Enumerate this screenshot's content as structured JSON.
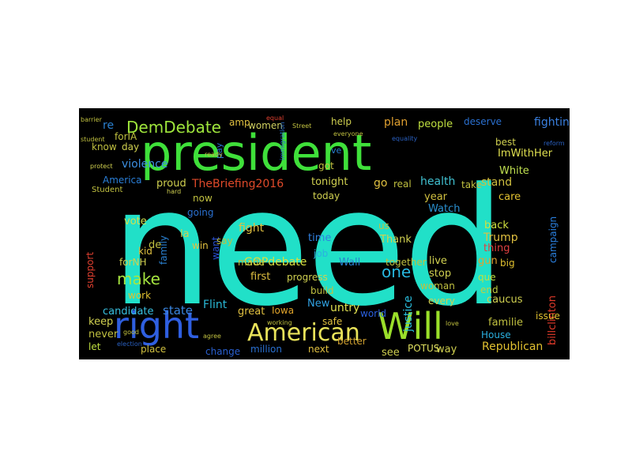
{
  "wordcloud": {
    "background": "#000000",
    "words": [
      {
        "text": "need",
        "color": "#21e0c8"
      },
      {
        "text": "president",
        "color": "#3fe03a"
      },
      {
        "text": "right",
        "color": "#2f5fe0"
      },
      {
        "text": "Will",
        "color": "#9adf2a"
      },
      {
        "text": "American",
        "color": "#e8e25a"
      },
      {
        "text": "DemDebate",
        "color": "#9fe63c"
      },
      {
        "text": "make",
        "color": "#a6e540"
      },
      {
        "text": "one",
        "color": "#27b8e0"
      },
      {
        "text": "TheBriefing2016",
        "color": "#e04a2a"
      },
      {
        "text": "violence",
        "color": "#3d8fe0"
      },
      {
        "text": "America",
        "color": "#2a7fd8"
      },
      {
        "text": "GOPdebate",
        "color": "#d8e040"
      },
      {
        "text": "Iowa",
        "color": "#e0a32a"
      },
      {
        "text": "Flint",
        "color": "#2ab8d6"
      },
      {
        "text": "state",
        "color": "#3a86e0"
      },
      {
        "text": "candidate",
        "color": "#38c0e0"
      },
      {
        "text": "Republican",
        "color": "#e0c030"
      },
      {
        "text": "women",
        "color": "#d0d060"
      },
      {
        "text": "people",
        "color": "#c0e040"
      },
      {
        "text": "fighting",
        "color": "#3a80e0"
      },
      {
        "text": "deserve",
        "color": "#2a70d0"
      },
      {
        "text": "ImWithHer",
        "color": "#e0e050"
      },
      {
        "text": "plan",
        "color": "#e0a030"
      },
      {
        "text": "help",
        "color": "#d0d050"
      },
      {
        "text": "White",
        "color": "#c0e050"
      },
      {
        "text": "stand",
        "color": "#d0c040"
      },
      {
        "text": "health",
        "color": "#40c0d0"
      },
      {
        "text": "care",
        "color": "#e0c030"
      },
      {
        "text": "campaign",
        "color": "#2a80e0"
      },
      {
        "text": "justice",
        "color": "#2ac0e0"
      },
      {
        "text": "Trump",
        "color": "#e0c040"
      },
      {
        "text": "back",
        "color": "#d0e040"
      },
      {
        "text": "gun",
        "color": "#e0a030"
      },
      {
        "text": "thing",
        "color": "#e04040"
      },
      {
        "text": "big",
        "color": "#e0c030"
      },
      {
        "text": "que",
        "color": "#c0e040"
      },
      {
        "text": "billclinton",
        "color": "#e03a2a"
      },
      {
        "text": "caucus",
        "color": "#d0d050"
      },
      {
        "text": "issue",
        "color": "#e0c030"
      },
      {
        "text": "familie",
        "color": "#c0c040"
      },
      {
        "text": "House",
        "color": "#2ab0e0"
      },
      {
        "text": "end",
        "color": "#c0d040"
      },
      {
        "text": "POTUS",
        "color": "#e0e060"
      },
      {
        "text": "way",
        "color": "#d0d050"
      },
      {
        "text": "better",
        "color": "#d0a030"
      },
      {
        "text": "see",
        "color": "#d0d050"
      },
      {
        "text": "next",
        "color": "#e0c040"
      },
      {
        "text": "world",
        "color": "#2a60e0"
      },
      {
        "text": "safe",
        "color": "#e0c040"
      },
      {
        "text": "untry",
        "color": "#e0e050"
      },
      {
        "text": "New",
        "color": "#30a0e0"
      },
      {
        "text": "great",
        "color": "#e0c040"
      },
      {
        "text": "million",
        "color": "#2a70d0"
      },
      {
        "text": "change",
        "color": "#2a60d0"
      },
      {
        "text": "place",
        "color": "#d0c040"
      },
      {
        "text": "let",
        "color": "#c0e040"
      },
      {
        "text": "never",
        "color": "#c0c040"
      },
      {
        "text": "keep",
        "color": "#d0d050"
      },
      {
        "text": "work",
        "color": "#e0c030"
      },
      {
        "text": "kid",
        "color": "#e0c040"
      },
      {
        "text": "vote",
        "color": "#d0e050"
      },
      {
        "text": "support",
        "color": "#e04030"
      },
      {
        "text": "family",
        "color": "#2a80d0"
      },
      {
        "text": "forNH",
        "color": "#d0d050"
      },
      {
        "text": "de",
        "color": "#c0c040"
      },
      {
        "text": "la",
        "color": "#d0d050"
      },
      {
        "text": "win",
        "color": "#e0c040"
      },
      {
        "text": "want",
        "color": "#2a50d0"
      },
      {
        "text": "made",
        "color": "#c0c040"
      },
      {
        "text": "first",
        "color": "#e0c040"
      },
      {
        "text": "progress",
        "color": "#d0d050"
      },
      {
        "text": "build",
        "color": "#c0c040"
      },
      {
        "text": "fight",
        "color": "#e0c040"
      },
      {
        "text": "Wall",
        "color": "#2a80d0"
      },
      {
        "text": "job",
        "color": "#2ab0e0"
      },
      {
        "text": "time",
        "color": "#3080e0"
      },
      {
        "text": "us",
        "color": "#c0c040"
      },
      {
        "text": "Thank",
        "color": "#d0d050"
      },
      {
        "text": "today",
        "color": "#d0d050"
      },
      {
        "text": "now",
        "color": "#c0c040"
      },
      {
        "text": "going",
        "color": "#2a70d0"
      },
      {
        "text": "say",
        "color": "#c0c040"
      },
      {
        "text": "proud",
        "color": "#d0d050"
      },
      {
        "text": "go",
        "color": "#e0c040"
      },
      {
        "text": "real",
        "color": "#c0c040"
      },
      {
        "text": "tonight",
        "color": "#d0d050"
      },
      {
        "text": "got",
        "color": "#c0c040"
      },
      {
        "text": "amp",
        "color": "#e0c040"
      },
      {
        "text": "re",
        "color": "#2a80d0"
      },
      {
        "text": "know",
        "color": "#c0c040"
      },
      {
        "text": "day",
        "color": "#d0d050"
      },
      {
        "text": "forIA",
        "color": "#c0c040"
      },
      {
        "text": "best",
        "color": "#d0d050"
      },
      {
        "text": "year",
        "color": "#d0c040"
      },
      {
        "text": "take",
        "color": "#c0c040"
      },
      {
        "text": "Watch",
        "color": "#2a90d0"
      },
      {
        "text": "stop",
        "color": "#d0d050"
      },
      {
        "text": "woman",
        "color": "#c0c040"
      },
      {
        "text": "live",
        "color": "#d0d050"
      },
      {
        "text": "together",
        "color": "#c0c040"
      },
      {
        "text": "every",
        "color": "#d0d050"
      },
      {
        "text": "ve",
        "color": "#2a80d0"
      },
      {
        "text": "pay",
        "color": "#2a70d0"
      },
      {
        "text": "Student",
        "color": "#c0c040"
      },
      {
        "text": "barrier",
        "color": "#c0c040"
      },
      {
        "text": "protect",
        "color": "#d0d050"
      },
      {
        "text": "immigration",
        "color": "#2a70d0"
      },
      {
        "text": "equality",
        "color": "#2a60c0"
      },
      {
        "text": "agree",
        "color": "#c0c040"
      },
      {
        "text": "hard",
        "color": "#d0d050"
      },
      {
        "text": "election",
        "color": "#2a60c0"
      },
      {
        "text": "everyone",
        "color": "#c0c040"
      },
      {
        "text": "Street",
        "color": "#c0c040"
      },
      {
        "text": "equal",
        "color": "#e04030"
      },
      {
        "text": "ready",
        "color": "#c0c040"
      },
      {
        "text": "good",
        "color": "#c0c040"
      },
      {
        "text": "love",
        "color": "#c0c040"
      },
      {
        "text": "reform",
        "color": "#2a60c0"
      },
      {
        "text": "student",
        "color": "#c0c040"
      },
      {
        "text": "working",
        "color": "#c0c040"
      }
    ]
  }
}
